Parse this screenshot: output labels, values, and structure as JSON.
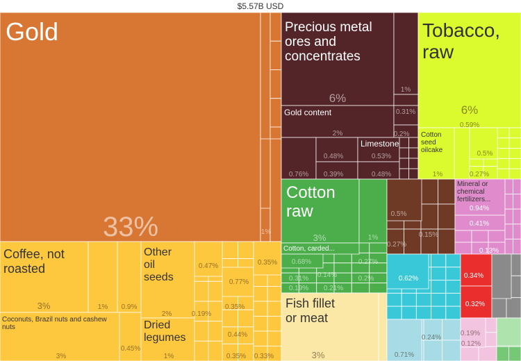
{
  "total_label": "$5.57B USD",
  "chart_data": {
    "type": "treemap",
    "title": "$5.57B USD",
    "unit": "% of total exports",
    "colors": {
      "gold_group": "#d87733",
      "agriculture": "#fdc73e",
      "fish": "#fbe8a6",
      "ores": "#532428",
      "tobacco": "#dcfb2e",
      "textiles": "#4bae4b",
      "wood_leather": "#6e3a25",
      "chemicals": "#e08bcb",
      "machinery": "#38c8d8",
      "machinery_light": "#a7dbe6",
      "vehicles_red": "#ea2d2d",
      "misc_gray": "#8a8a8a",
      "misc_green": "#76c776",
      "pink_light": "#f3c4e0"
    },
    "items": [
      {
        "name": "Gold",
        "share_label": "33%",
        "value": 33
      },
      {
        "name": "Coffee, not roasted",
        "share_label": "3%",
        "value": 3
      },
      {
        "name": "Coconuts, Brazil nuts and cashew nuts",
        "share_label": "3%",
        "value": 3
      },
      {
        "name": "Other oil seeds",
        "share_label": "2%",
        "value": 2
      },
      {
        "name": "Dried legumes",
        "share_label": "1%",
        "value": 1
      },
      {
        "name": "Precious metal ores and concentrates",
        "share_label": "6%",
        "value": 6
      },
      {
        "name": "Gold content",
        "share_label": "2%",
        "value": 2
      },
      {
        "name": "Limestone",
        "share_label": "0.53%",
        "value": 0.53
      },
      {
        "name": "Tobacco, raw",
        "share_label": "6%",
        "value": 6
      },
      {
        "name": "Cotton seed oilcake",
        "share_label": "1%",
        "value": 1
      },
      {
        "name": "Cotton raw",
        "share_label": "3%",
        "value": 3
      },
      {
        "name": "Cotton, carded...",
        "share_label": "0.68%",
        "value": 0.68
      },
      {
        "name": "Fish fillet or meat",
        "share_label": "3%",
        "value": 3
      },
      {
        "name": "Mineral or chemical fertilizers...",
        "share_label": "0.94%",
        "value": 0.94
      }
    ],
    "minor_labels": [
      "1%",
      "0.9%",
      "0.45%",
      "0.47%",
      "0.77%",
      "0.35%",
      "0.19%",
      "0.44%",
      "0.33%",
      "1%",
      "0.31%",
      "0.2%",
      "0.48%",
      "0.39%",
      "0.76%",
      "0.59%",
      "0.5%",
      "0.27%",
      "1%",
      "0.27%",
      "0.31%",
      "0.14%",
      "0.19%",
      "0.21%",
      "0.2%",
      "0.5%",
      "0.15%",
      "0.27%",
      "0.41%",
      "0.13%",
      "0.62%",
      "0.34%",
      "0.32%",
      "0.24%",
      "0.71%",
      "0.19%",
      "0.12%"
    ]
  }
}
